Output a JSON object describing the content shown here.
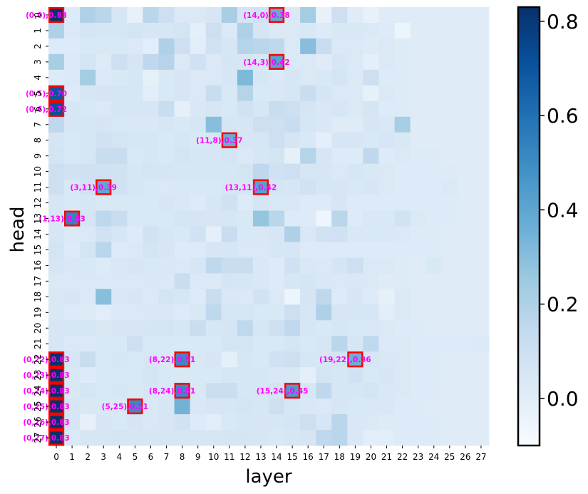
{
  "chart_data": {
    "type": "heatmap",
    "title": "",
    "xlabel": "layer",
    "ylabel": "head",
    "x_ticks": [
      "0",
      "1",
      "2",
      "3",
      "4",
      "5",
      "6",
      "7",
      "8",
      "9",
      "10",
      "11",
      "12",
      "13",
      "14",
      "15",
      "16",
      "17",
      "18",
      "19",
      "20",
      "21",
      "22",
      "23",
      "24",
      "25",
      "26",
      "27"
    ],
    "y_ticks": [
      "0",
      "1",
      "2",
      "3",
      "4",
      "5",
      "6",
      "7",
      "8",
      "9",
      "10",
      "11",
      "12",
      "13",
      "14",
      "15",
      "16",
      "17",
      "18",
      "19",
      "20",
      "21",
      "22",
      "23",
      "24",
      "25",
      "26",
      "27"
    ],
    "colormap": "Blues",
    "color_range": [
      -0.1,
      0.83
    ],
    "colorbar_ticks": [
      "0.0",
      "0.2",
      "0.4",
      "0.6",
      "0.8"
    ],
    "colorbar_tick_values": [
      0.0,
      0.2,
      0.4,
      0.6,
      0.8
    ],
    "highlight_color": "#ff0000",
    "annotation_color": "#ff00ff",
    "values": [
      [
        0.83,
        0.02,
        0.2,
        0.17,
        0.05,
        -0.03,
        0.17,
        0.1,
        0.03,
        0.03,
        0.05,
        0.22,
        0.06,
        0.08,
        0.38,
        0.03,
        0.23,
        -0.03,
        0.1,
        0.01,
        -0.03,
        0.01,
        0.01,
        0.01,
        0.01,
        0.01,
        0.01,
        0.01
      ],
      [
        0.2,
        0.03,
        0.06,
        0.05,
        0.05,
        0.07,
        0.05,
        0.05,
        0.07,
        -0.01,
        0.1,
        0.03,
        0.2,
        0.06,
        0.03,
        0.03,
        0.04,
        0.02,
        0.04,
        0.04,
        0.03,
        0.02,
        -0.05,
        0.01,
        0.01,
        0.01,
        0.01,
        0.01
      ],
      [
        0.02,
        0.02,
        0.04,
        0.04,
        0.04,
        0.03,
        0.0,
        0.2,
        0.1,
        0.0,
        0.08,
        0.05,
        0.18,
        0.17,
        0.15,
        0.03,
        0.3,
        0.12,
        0.03,
        0.03,
        0.02,
        0.03,
        0.02,
        0.01,
        0.01,
        0.01,
        0.01,
        0.01
      ],
      [
        0.22,
        0.03,
        0.07,
        0.02,
        0.1,
        0.06,
        0.15,
        0.18,
        0.03,
        0.09,
        0.03,
        0.06,
        0.05,
        0.05,
        0.42,
        0.03,
        0.03,
        0.01,
        0.05,
        0.03,
        -0.01,
        0.03,
        0.02,
        0.01,
        0.01,
        0.01,
        0.01,
        0.01
      ],
      [
        0.02,
        0.03,
        0.23,
        0.03,
        0.04,
        0.05,
        -0.02,
        0.04,
        0.05,
        0.03,
        0.03,
        0.05,
        0.32,
        0.05,
        0.03,
        0.05,
        0.03,
        0.04,
        0.07,
        0.03,
        0.1,
        0.02,
        0.02,
        0.01,
        0.01,
        0.01,
        0.01,
        0.01
      ],
      [
        0.7,
        0.02,
        0.05,
        0.06,
        0.06,
        0.05,
        0.0,
        0.04,
        0.05,
        0.03,
        0.12,
        0.04,
        0.18,
        0.04,
        0.04,
        0.05,
        0.12,
        0.06,
        0.03,
        0.03,
        -0.02,
        0.03,
        0.02,
        0.01,
        0.01,
        0.01,
        0.01,
        0.01
      ],
      [
        0.72,
        0.05,
        0.04,
        0.03,
        0.06,
        0.05,
        0.05,
        0.12,
        -0.01,
        0.04,
        0.05,
        0.04,
        0.08,
        0.05,
        0.12,
        0.1,
        0.06,
        0.04,
        0.05,
        0.03,
        0.06,
        0.02,
        0.02,
        0.01,
        0.01,
        0.01,
        0.01,
        0.01
      ],
      [
        0.15,
        0.05,
        0.05,
        0.06,
        0.04,
        0.04,
        0.04,
        0.05,
        0.04,
        0.05,
        0.3,
        0.06,
        0.05,
        0.1,
        0.1,
        0.12,
        0.05,
        0.04,
        0.01,
        0.01,
        0.05,
        0.04,
        0.22,
        0.01,
        0.01,
        0.01,
        0.01,
        0.01
      ],
      [
        0.06,
        0.04,
        0.05,
        0.08,
        0.07,
        0.05,
        0.05,
        0.04,
        0.05,
        0.04,
        0.05,
        0.37,
        0.05,
        0.05,
        0.1,
        0.06,
        0.04,
        -0.01,
        0.05,
        0.05,
        0.04,
        0.05,
        0.04,
        0.01,
        0.01,
        0.01,
        0.01,
        0.01
      ],
      [
        0.07,
        0.04,
        0.05,
        0.12,
        0.12,
        0.04,
        0.05,
        0.04,
        0.07,
        0.05,
        0.05,
        0.07,
        0.03,
        0.05,
        0.07,
        -0.02,
        0.18,
        0.05,
        0.02,
        0.02,
        0.15,
        0.02,
        0.03,
        0.02,
        0.02,
        0.01,
        0.01,
        0.01
      ],
      [
        0.1,
        0.08,
        0.09,
        0.09,
        0.08,
        0.05,
        0.07,
        0.06,
        0.05,
        0.05,
        0.05,
        0.05,
        0.07,
        0.15,
        0.09,
        0.1,
        0.05,
        0.05,
        0.03,
        0.05,
        0.04,
        0.03,
        0.02,
        0.02,
        0.02,
        0.02,
        0.01,
        0.01
      ],
      [
        0.1,
        0.04,
        0.08,
        0.39,
        0.09,
        0.05,
        0.04,
        0.03,
        0.04,
        0.04,
        0.04,
        0.05,
        0.05,
        0.42,
        0.06,
        0.05,
        0.08,
        0.05,
        0.05,
        0.04,
        0.05,
        0.03,
        0.02,
        0.02,
        0.02,
        0.03,
        0.01,
        0.01
      ],
      [
        0.05,
        0.04,
        0.05,
        0.04,
        0.04,
        0.04,
        0.04,
        0.05,
        0.04,
        0.02,
        0.05,
        0.09,
        0.02,
        0.06,
        0.04,
        0.04,
        0.02,
        0.02,
        0.05,
        0.02,
        0.02,
        0.02,
        0.02,
        0.02,
        0.02,
        0.02,
        0.01,
        0.01
      ],
      [
        0.05,
        0.53,
        0.06,
        0.16,
        0.12,
        0.04,
        0.04,
        0.04,
        0.06,
        0.06,
        0.05,
        0.05,
        0.04,
        0.27,
        0.17,
        0.02,
        0.02,
        -0.06,
        0.17,
        0.02,
        0.04,
        0.04,
        0.08,
        0.03,
        0.02,
        0.02,
        0.01,
        0.01
      ],
      [
        0.05,
        0.03,
        0.03,
        0.08,
        0.05,
        0.02,
        0.08,
        0.05,
        0.04,
        0.08,
        -0.01,
        0.12,
        0.04,
        0.04,
        0.05,
        0.2,
        0.04,
        0.08,
        0.09,
        0.04,
        0.04,
        0.04,
        0.03,
        0.02,
        0.02,
        0.01,
        0.01,
        0.01
      ],
      [
        0.07,
        0.02,
        0.07,
        0.17,
        0.02,
        0.03,
        0.07,
        0.05,
        0.02,
        0.02,
        0.05,
        0.05,
        0.03,
        0.03,
        0.05,
        0.05,
        0.02,
        0.02,
        0.02,
        0.02,
        0.02,
        0.02,
        0.02,
        0.02,
        0.02,
        0.01,
        0.01,
        0.01
      ],
      [
        0.05,
        0.04,
        0.04,
        0.02,
        0.04,
        0.05,
        0.04,
        0.04,
        0.03,
        0.05,
        0.15,
        0.12,
        0.12,
        0.04,
        0.02,
        0.09,
        0.04,
        0.03,
        0.06,
        0.1,
        0.03,
        0.03,
        0.02,
        0.01,
        0.04,
        0.01,
        0.01,
        0.01
      ],
      [
        0.03,
        0.03,
        0.03,
        0.03,
        0.03,
        0.03,
        0.04,
        0.03,
        0.12,
        0.03,
        0.03,
        0.06,
        0.05,
        0.04,
        0.02,
        0.05,
        0.06,
        0.04,
        0.03,
        0.04,
        0.03,
        0.01,
        0.02,
        0.01,
        0.01,
        0.01,
        0.01,
        0.01
      ],
      [
        0.04,
        0.05,
        0.03,
        0.3,
        0.04,
        0.05,
        0.03,
        0.07,
        0.05,
        0.02,
        0.12,
        0.04,
        0.03,
        0.08,
        0.03,
        -0.05,
        0.06,
        0.15,
        0.02,
        0.05,
        0.02,
        -0.02,
        0.03,
        0.01,
        0.01,
        0.01,
        0.01,
        0.01
      ],
      [
        0.04,
        0.02,
        0.02,
        0.0,
        0.03,
        0.03,
        0.04,
        0.04,
        0.02,
        0.04,
        0.15,
        0.05,
        0.06,
        0.04,
        0.04,
        0.1,
        0.05,
        0.2,
        0.05,
        0.05,
        0.05,
        0.0,
        0.03,
        0.01,
        0.01,
        0.01,
        0.01,
        0.01
      ],
      [
        0.05,
        0.05,
        0.05,
        0.04,
        0.05,
        0.05,
        0.06,
        0.07,
        0.05,
        0.12,
        0.05,
        0.06,
        0.15,
        0.05,
        0.1,
        0.15,
        0.05,
        0.04,
        0.05,
        0.04,
        0.04,
        0.03,
        0.02,
        0.02,
        0.01,
        0.01,
        0.01,
        0.01
      ],
      [
        0.05,
        0.03,
        0.03,
        0.04,
        0.04,
        0.1,
        0.04,
        0.04,
        0.04,
        0.04,
        0.04,
        0.07,
        0.07,
        0.04,
        0.04,
        0.06,
        0.04,
        0.05,
        0.17,
        0.05,
        0.15,
        0.03,
        0.03,
        0.02,
        0.02,
        0.02,
        0.02,
        0.03
      ],
      [
        0.83,
        0.05,
        0.12,
        0.04,
        0.05,
        0.04,
        0.05,
        0.04,
        0.51,
        0.04,
        0.05,
        -0.01,
        0.05,
        0.04,
        0.09,
        0.1,
        0.05,
        0.05,
        0.07,
        0.36,
        0.05,
        0.04,
        0.03,
        0.02,
        0.02,
        0.01,
        0.01,
        0.01
      ],
      [
        0.83,
        0.04,
        0.02,
        0.04,
        0.04,
        0.04,
        0.07,
        0.04,
        0.04,
        0.04,
        0.04,
        0.05,
        0.05,
        0.05,
        0.04,
        0.04,
        -0.01,
        0.07,
        0.05,
        0.08,
        0.04,
        0.05,
        0.03,
        0.02,
        0.02,
        0.01,
        0.01,
        0.01
      ],
      [
        0.83,
        0.04,
        0.06,
        0.04,
        0.05,
        0.04,
        0.05,
        0.04,
        0.51,
        0.04,
        0.11,
        0.11,
        0.05,
        0.05,
        0.07,
        0.45,
        0.05,
        0.15,
        0.05,
        0.05,
        0.07,
        0.04,
        0.03,
        0.02,
        0.02,
        0.01,
        0.01,
        0.01
      ],
      [
        0.83,
        0.05,
        0.04,
        0.04,
        0.04,
        0.51,
        0.04,
        0.05,
        0.35,
        0.04,
        0.05,
        0.05,
        0.07,
        0.05,
        0.1,
        0.05,
        0.04,
        0.03,
        0.05,
        0.04,
        0.04,
        0.04,
        0.02,
        0.02,
        0.01,
        0.01,
        0.01,
        0.01
      ],
      [
        0.83,
        0.05,
        -0.02,
        0.05,
        0.04,
        0.06,
        0.04,
        0.05,
        0.08,
        0.02,
        0.0,
        0.04,
        0.05,
        0.05,
        0.05,
        0.06,
        0.1,
        0.05,
        0.17,
        0.04,
        0.03,
        0.02,
        0.02,
        0.02,
        0.02,
        0.01,
        0.01,
        0.01
      ],
      [
        0.83,
        0.03,
        0.05,
        0.05,
        0.06,
        0.05,
        0.05,
        0.05,
        0.05,
        0.05,
        0.05,
        0.06,
        0.06,
        0.05,
        0.04,
        0.05,
        0.06,
        0.15,
        0.17,
        0.04,
        0.0,
        0.0,
        0.02,
        0.02,
        0.02,
        0.01,
        0.01,
        0.01
      ]
    ],
    "highlights": [
      {
        "layer": 0,
        "head": 0,
        "label": "(0,0),0.83"
      },
      {
        "layer": 14,
        "head": 0,
        "label": "(14,0),0.38"
      },
      {
        "layer": 14,
        "head": 3,
        "label": "(14,3),0.42"
      },
      {
        "layer": 0,
        "head": 5,
        "label": "(0,5),0.70"
      },
      {
        "layer": 0,
        "head": 6,
        "label": "(0,6),0.72"
      },
      {
        "layer": 11,
        "head": 8,
        "label": "(11,8),0.37"
      },
      {
        "layer": 3,
        "head": 11,
        "label": "(3,11),0.39"
      },
      {
        "layer": 13,
        "head": 11,
        "label": "(13,11),0.42"
      },
      {
        "layer": 1,
        "head": 13,
        "label": "(1,13),0.53"
      },
      {
        "layer": 0,
        "head": 22,
        "label": "(0,22),0.83"
      },
      {
        "layer": 8,
        "head": 22,
        "label": "(8,22),0.51"
      },
      {
        "layer": 19,
        "head": 22,
        "label": "(19,22),0.36"
      },
      {
        "layer": 0,
        "head": 23,
        "label": "(0,23),0.83"
      },
      {
        "layer": 0,
        "head": 24,
        "label": "(0,24),0.83"
      },
      {
        "layer": 8,
        "head": 24,
        "label": "(8,24),0.51"
      },
      {
        "layer": 15,
        "head": 24,
        "label": "(15,24),0.45"
      },
      {
        "layer": 0,
        "head": 25,
        "label": "(0,25),0.83"
      },
      {
        "layer": 5,
        "head": 25,
        "label": "(5,25),0.51"
      },
      {
        "layer": 0,
        "head": 26,
        "label": "(0,26),0.83"
      },
      {
        "layer": 0,
        "head": 27,
        "label": "(0,27),0.83"
      }
    ]
  }
}
